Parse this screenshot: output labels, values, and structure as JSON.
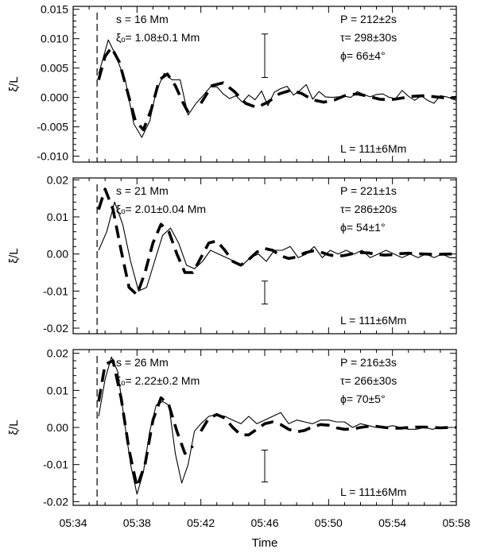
{
  "chart_data": [
    {
      "type": "line",
      "ylabel": "ξ/L",
      "ylim": [
        -0.011,
        0.0155
      ],
      "yticks": [
        -0.01,
        -0.005,
        0.0,
        0.005,
        0.01,
        0.015
      ],
      "ytick_labels": [
        "-0.010",
        "-0.005",
        "0.000",
        "0.005",
        "0.010",
        "0.015"
      ],
      "xlim": [
        334,
        358
      ],
      "vline_x": 335.5,
      "errorbar": {
        "x": 346,
        "y": 0.0071,
        "half": 0.0037
      },
      "annotations_left": [
        "s = 16 Mm",
        "ξₒ= 1.08±0.1 Mm"
      ],
      "annotations_right": [
        "P = 212±2s",
        "τ= 298±30s",
        "ϕ= 66±4°"
      ],
      "annotation_bottom": "L = 111±6Mm",
      "series": [
        {
          "style": "solid",
          "x": [
            335.6,
            336.2,
            336.7,
            337.3,
            337.8,
            338.3,
            338.8,
            339.2,
            339.7,
            340.2,
            340.7,
            341.2,
            341.7,
            342.2,
            342.6,
            343.0,
            343.4,
            343.8,
            344.2,
            344.6,
            345.0,
            345.4,
            345.8,
            346.2,
            346.6,
            347.0,
            347.4,
            347.8,
            348.2,
            348.6,
            349.0,
            349.4,
            349.8,
            350.2,
            350.6,
            351.0,
            351.4,
            351.8,
            352.2,
            352.6,
            353.0,
            353.4,
            353.8,
            354.2,
            354.6,
            355.0,
            355.4,
            355.8,
            356.2,
            356.6,
            357.0,
            357.4,
            358.0
          ],
          "y": [
            0.004,
            0.0098,
            0.007,
            0.0025,
            -0.0045,
            -0.0068,
            -0.004,
            0.001,
            0.0041,
            0.003,
            0.003,
            -0.003,
            -0.001,
            0.0005,
            0.0018,
            0.0018,
            0.0006,
            -0.0002,
            0.0003,
            -0.0008,
            0.0004,
            -0.0004,
            0.0011,
            -0.0014,
            0.0009,
            0.0015,
            0.0019,
            0.0004,
            0.0012,
            0.0022,
            -0.0003,
            0.001,
            0.0001,
            0.0,
            0.0001,
            0.0002,
            0.0,
            0.001,
            0.0005,
            0.0001,
            0.0005,
            0.0006,
            0.0,
            -0.0002,
            0.0012,
            0.0002,
            -0.0005,
            0.0003,
            -0.0005,
            -0.001,
            0.0003,
            0.0001,
            -0.0005
          ]
        },
        {
          "style": "dashed",
          "segments": [
            {
              "x": [
                335.6,
                336.0,
                336.4,
                336.9,
                337.4,
                337.9,
                338.4,
                338.9,
                339.4,
                339.9,
                340.4,
                340.9,
                341.3
              ],
              "y": [
                0.003,
                0.007,
                0.0085,
                0.006,
                0.001,
                -0.004,
                -0.0055,
                -0.002,
                0.003,
                0.004,
                0.002,
                -0.001,
                -0.003
              ]
            },
            {
              "x": [
                342.0,
                342.7,
                343.4,
                344.1,
                344.8,
                345.5,
                346.2,
                346.9,
                347.6,
                348.3,
                349.0,
                349.7,
                350.4,
                351.1,
                351.8,
                352.5,
                353.2,
                353.9,
                354.6,
                355.3,
                356.0,
                356.7,
                357.4,
                358.0
              ],
              "y": [
                -0.001,
                0.002,
                0.0025,
                0.001,
                -0.001,
                -0.0017,
                -0.0008,
                0.0006,
                0.0012,
                0.0007,
                -0.0004,
                -0.0008,
                -0.0004,
                0.0004,
                0.0006,
                0.0002,
                -0.0003,
                -0.0004,
                -0.0001,
                0.0002,
                0.0003,
                0.0001,
                -0.0001,
                0.0
              ]
            }
          ]
        }
      ]
    },
    {
      "type": "line",
      "ylabel": "ξ/L",
      "ylim": [
        -0.0215,
        0.0205
      ],
      "yticks": [
        -0.02,
        -0.01,
        0.0,
        0.01,
        0.02
      ],
      "ytick_labels": [
        "-0.02",
        "-0.01",
        "0.00",
        "0.01",
        "0.02"
      ],
      "xlim": [
        334,
        358
      ],
      "vline_x": 335.5,
      "errorbar": {
        "x": 346,
        "y": -0.0104,
        "half": 0.0031
      },
      "annotations_left": [
        "s = 21 Mm",
        "ξₒ= 2.01±0.04 Mm"
      ],
      "annotations_right": [
        "P = 221±1s",
        "τ= 286±20s",
        "ϕ= 54±1°"
      ],
      "annotation_bottom": "L = 111±6Mm",
      "series": [
        {
          "style": "solid",
          "x": [
            335.6,
            336.1,
            336.6,
            337.1,
            337.6,
            338.1,
            338.6,
            339.1,
            339.6,
            340.1,
            340.6,
            341.1,
            341.6,
            342.1,
            342.6,
            343.1,
            343.6,
            344.1,
            344.6,
            345.1,
            345.6,
            346.1,
            346.6,
            347.1,
            347.6,
            348.1,
            348.6,
            349.1,
            349.6,
            350.1,
            350.6,
            351.1,
            351.6,
            352.1,
            352.6,
            353.1,
            353.6,
            354.1,
            354.6,
            355.1,
            355.6,
            356.1,
            356.6,
            357.1,
            357.6,
            358.0
          ],
          "y": [
            0.001,
            0.006,
            0.014,
            0.008,
            -0.002,
            -0.01,
            -0.009,
            -0.002,
            0.005,
            0.007,
            0.003,
            -0.003,
            -0.004,
            -0.002,
            0.001,
            0.0,
            -0.001,
            -0.002,
            -0.003,
            -0.001,
            0.0,
            -0.002,
            0.001,
            0.001,
            0.002,
            -0.001,
            0.0,
            0.002,
            -0.001,
            0.001,
            0.0,
            0.001,
            0.0,
            0.001,
            -0.001,
            0.0,
            0.001,
            0.0,
            -0.001,
            0.0,
            -0.001,
            0.0,
            -0.001,
            0.0,
            -0.001,
            -0.001
          ]
        },
        {
          "style": "dashed",
          "segments": [
            {
              "x": [
                335.6,
                336.0,
                336.5,
                337.0,
                337.5,
                338.0,
                338.5,
                339.0,
                339.5,
                340.0,
                340.5,
                341.0,
                341.5,
                342.0,
                342.5,
                343.0,
                343.5,
                344.0,
                344.5,
                345.0,
                345.5,
                346.0,
                346.5,
                347.0,
                347.5,
                348.0,
                348.5,
                349.0,
                349.5,
                350.0,
                350.5,
                351.0,
                351.5,
                352.0,
                352.5,
                353.0,
                353.5,
                354.0,
                354.5,
                355.0,
                355.5,
                356.0,
                356.5,
                357.0,
                357.5,
                358.0
              ],
              "y": [
                0.012,
                0.0175,
                0.012,
                0.001,
                -0.009,
                -0.011,
                -0.005,
                0.003,
                0.008,
                0.006,
                0.0,
                -0.005,
                -0.005,
                -0.001,
                0.003,
                0.0035,
                0.001,
                -0.002,
                -0.003,
                -0.0015,
                0.0005,
                0.0015,
                0.001,
                -0.0005,
                -0.0012,
                -0.0008,
                0.0003,
                0.0008,
                0.0005,
                -0.0002,
                -0.0006,
                -0.0004,
                0.0001,
                0.0004,
                0.0003,
                -0.0001,
                -0.0003,
                -0.0002,
                0.0001,
                0.0002,
                0.0001,
                0.0,
                -0.0001,
                -0.0001,
                0.0,
                0.0
              ]
            }
          ]
        }
      ]
    },
    {
      "type": "line",
      "ylabel": "ξ/L",
      "ylim": [
        -0.021,
        0.021
      ],
      "yticks": [
        -0.02,
        -0.01,
        0.0,
        0.01,
        0.02
      ],
      "ytick_labels": [
        "-0.02",
        "-0.01",
        "0.00",
        "0.01",
        "0.02"
      ],
      "xlim": [
        334,
        358
      ],
      "vline_x": 335.5,
      "errorbar": {
        "x": 346,
        "y": -0.0104,
        "half": 0.0043
      },
      "annotations_left": [
        "s = 26 Mm",
        "ξₒ= 2.22±0.2 Mm"
      ],
      "annotations_right": [
        "P = 216±3s",
        "τ= 266±30s",
        "ϕ= 70±5°"
      ],
      "annotation_bottom": "L = 111±6Mm",
      "xticks": [
        334,
        338,
        342,
        346,
        350,
        354,
        358
      ],
      "xtick_labels": [
        "05:34",
        "05:38",
        "05:42",
        "05:46",
        "05:50",
        "05:54",
        "05:58"
      ],
      "xlabel": "Time",
      "series": [
        {
          "style": "solid",
          "x": [
            335.6,
            336.0,
            336.4,
            336.8,
            337.2,
            337.6,
            338.0,
            338.4,
            338.8,
            339.2,
            339.6,
            340.0,
            340.4,
            340.8,
            341.2,
            341.6,
            342.0,
            342.5,
            343.0,
            343.5,
            344.0,
            344.5,
            345.0,
            345.5,
            346.0,
            346.5,
            347.0,
            347.5,
            348.0,
            348.5,
            349.0,
            349.5,
            350.0,
            350.5,
            351.0,
            351.5,
            352.0,
            352.5,
            353.0,
            353.5,
            354.0,
            354.5,
            355.0,
            355.5,
            356.0,
            356.5,
            357.0,
            357.5,
            358.0
          ],
          "y": [
            0.003,
            0.013,
            0.019,
            0.015,
            0.002,
            -0.01,
            -0.018,
            -0.012,
            -0.001,
            0.006,
            0.007,
            0.006,
            -0.007,
            -0.015,
            -0.01,
            -0.001,
            0.001,
            0.003,
            0.0035,
            0.003,
            0.002,
            0.001,
            0.003,
            0.001,
            0.002,
            0.003,
            0.004,
            0.001,
            0.002,
            0.0015,
            0.001,
            0.002,
            0.002,
            0.0015,
            0.0015,
            0.0,
            0.001,
            0.0005,
            0.0,
            0.0,
            0.0005,
            0.0,
            -0.0005,
            -0.0005,
            0.0,
            -0.0005,
            0.0,
            0.0,
            0.0
          ]
        },
        {
          "style": "dashed",
          "segments": [
            {
              "x": [
                335.6,
                336.0,
                336.5,
                337.0,
                337.5,
                338.0,
                338.5,
                339.0,
                339.5,
                340.0,
                340.5,
                341.0,
                341.5
              ],
              "y": [
                0.007,
                0.017,
                0.018,
                0.008,
                -0.006,
                -0.016,
                -0.01,
                0.002,
                0.008,
                0.006,
                -0.001,
                -0.007,
                -0.005
              ]
            },
            {
              "x": [
                342.0,
                342.5,
                343.0,
                343.5,
                344.0,
                344.5,
                345.0,
                345.5,
                346.0,
                346.5,
                347.0,
                347.5,
                348.0,
                348.5,
                349.0,
                349.5,
                350.0,
                350.5,
                351.0,
                351.5,
                352.0,
                352.5,
                353.0,
                353.5,
                354.0,
                354.5,
                355.0,
                355.5,
                356.0,
                356.5,
                357.0,
                357.5,
                358.0
              ],
              "y": [
                -0.001,
                0.0025,
                0.0035,
                0.0025,
                0.0,
                -0.002,
                -0.002,
                -0.0005,
                0.001,
                0.0015,
                0.0008,
                -0.0005,
                -0.0012,
                -0.0008,
                0.0002,
                0.0008,
                0.0006,
                -0.0001,
                -0.0005,
                -0.0004,
                0.0,
                0.0003,
                0.0003,
                0.0,
                -0.0002,
                -0.0002,
                0.0,
                0.0001,
                0.0001,
                0.0,
                -0.0001,
                0.0,
                0.0
              ]
            }
          ]
        }
      ]
    }
  ]
}
